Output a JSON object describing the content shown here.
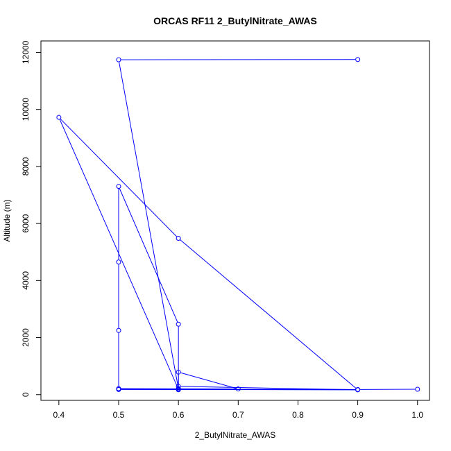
{
  "chart_data": {
    "type": "line",
    "title": "ORCAS RF11 2_ButylNitrate_AWAS",
    "xlabel": "2_ButylNitrate_AWAS",
    "ylabel": "Altitude (m)",
    "xlim": [
      0.37,
      1.02
    ],
    "ylim": [
      -200,
      12400
    ],
    "xticks": [
      0.4,
      0.5,
      0.6,
      0.7,
      0.8,
      0.9,
      1.0
    ],
    "xtick_labels": [
      "0.4",
      "0.5",
      "0.6",
      "0.7",
      "0.8",
      "0.9",
      "1.0"
    ],
    "yticks": [
      0,
      2000,
      4000,
      6000,
      8000,
      10000,
      12000
    ],
    "ytick_labels": [
      "0",
      "2000",
      "4000",
      "6000",
      "8000",
      "10000",
      "12000"
    ],
    "grid": false,
    "series_color": "#0000ff",
    "series": [
      {
        "x": [
          0.9,
          0.5,
          0.6,
          0.6,
          0.6,
          0.7,
          0.5,
          0.5,
          0.5,
          0.5,
          0.6,
          0.6,
          0.9,
          0.5,
          0.5,
          0.9,
          0.6,
          0.4,
          0.6,
          0.9,
          1.0
        ],
        "y": [
          11750,
          11740,
          210,
          170,
          790,
          200,
          210,
          2250,
          4650,
          7300,
          2470,
          290,
          170,
          190,
          180,
          170,
          5480,
          9720,
          190,
          180,
          190
        ]
      }
    ]
  }
}
